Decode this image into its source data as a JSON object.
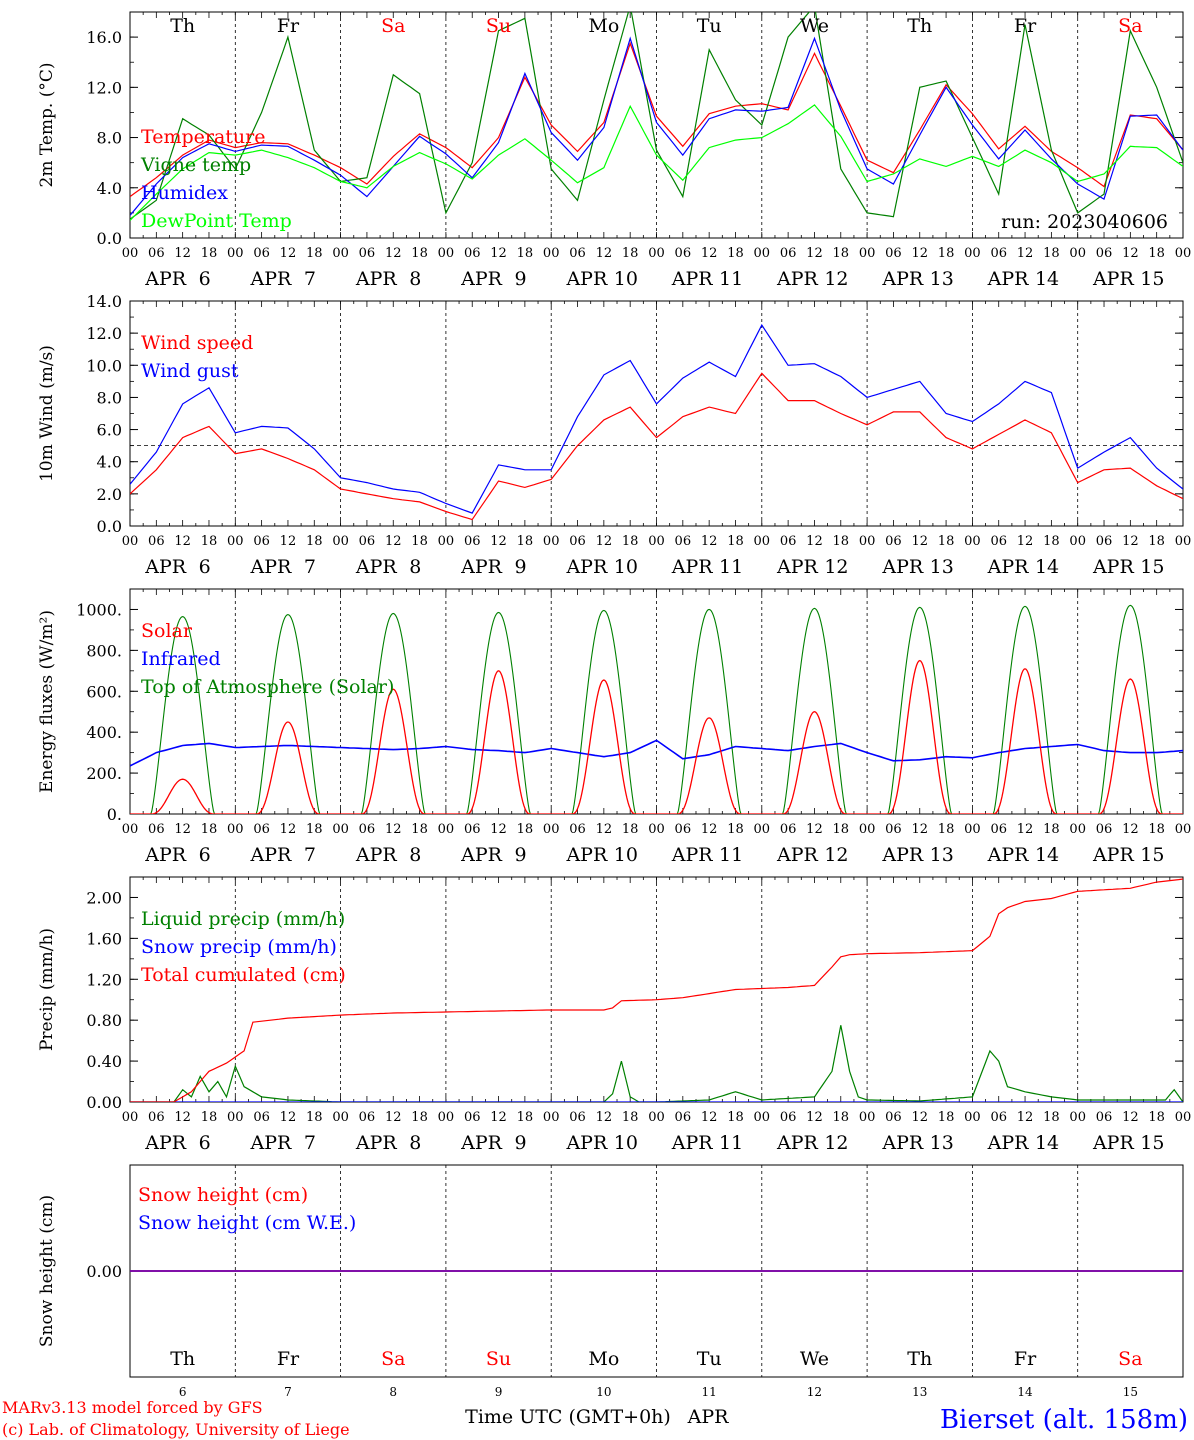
{
  "colors": {
    "red": "#ff0000",
    "green": "#008000",
    "lime": "#00ff00",
    "blue": "#0000ff",
    "purple": "#8000a0",
    "black": "#000000",
    "weekend": "#ff0000"
  },
  "days": [
    {
      "abbr": "Th",
      "date": "6",
      "weekend": false
    },
    {
      "abbr": "Fr",
      "date": "7",
      "weekend": false
    },
    {
      "abbr": "Sa",
      "date": "8",
      "weekend": true
    },
    {
      "abbr": "Su",
      "date": "9",
      "weekend": true
    },
    {
      "abbr": "Mo",
      "date": "10",
      "weekend": false
    },
    {
      "abbr": "Tu",
      "date": "11",
      "weekend": false
    },
    {
      "abbr": "We",
      "date": "12",
      "weekend": false
    },
    {
      "abbr": "Th",
      "date": "13",
      "weekend": false
    },
    {
      "abbr": "Fr",
      "date": "14",
      "weekend": false
    },
    {
      "abbr": "Sa",
      "date": "15",
      "weekend": true
    }
  ],
  "month": "APR",
  "hour_ticks": [
    "00",
    "06",
    "12",
    "18"
  ],
  "final_hour_tick": "00",
  "run_label": "run: 2023040606",
  "xlabel": "Time UTC (GMT+0h)",
  "xlabel_month": "APR",
  "footer": {
    "model": "MARv3.13 model forced by GFS",
    "copyright": "(c) Lab. of Climatology, University of Liege",
    "station": "Bierset (alt. 158m)"
  },
  "chart_data": [
    {
      "type": "line",
      "ylabel": "2m Temp. (°C)",
      "ylim": [
        0,
        18
      ],
      "yticks": [
        "0.0",
        "4.0",
        "8.0",
        "12.0",
        "16.0"
      ],
      "ytick_values": [
        0,
        4,
        8,
        12,
        16
      ],
      "legend_placement": "left",
      "x_unit": "hours since 2023-04-06 00:00 UTC",
      "series": [
        {
          "name": "Temperature",
          "color": "red",
          "x": [
            0,
            6,
            12,
            18,
            24,
            30,
            36,
            42,
            48,
            54,
            60,
            66,
            72,
            78,
            84,
            90,
            96,
            102,
            108,
            114,
            120,
            126,
            132,
            138,
            144,
            150,
            156,
            162,
            168,
            174,
            180,
            186,
            192,
            198,
            204,
            210,
            216,
            222,
            228,
            234,
            240
          ],
          "y": [
            3.3,
            4.8,
            6.6,
            7.8,
            7.2,
            7.6,
            7.5,
            6.6,
            5.6,
            4.3,
            6.5,
            8.3,
            7.2,
            5.6,
            8.0,
            12.8,
            9.0,
            6.9,
            9.2,
            15.5,
            9.7,
            7.3,
            9.9,
            10.5,
            10.7,
            10.2,
            14.7,
            10.5,
            6.2,
            5.2,
            8.6,
            12.2,
            9.9,
            7.1,
            8.9,
            6.9,
            5.6,
            4.1,
            9.8,
            9.5,
            7.0
          ]
        },
        {
          "name": "Vigne temp",
          "color": "green",
          "x": [
            0,
            6,
            12,
            18,
            24,
            30,
            36,
            42,
            48,
            54,
            60,
            66,
            72,
            78,
            84,
            90,
            96,
            102,
            108,
            114,
            120,
            126,
            132,
            138,
            144,
            150,
            156,
            162,
            168,
            174,
            180,
            186,
            192,
            198,
            204,
            210,
            216,
            222,
            228,
            234,
            240
          ],
          "y": [
            1.5,
            3.0,
            9.5,
            8.2,
            5.5,
            10.0,
            16.0,
            7.0,
            4.5,
            4.8,
            13.0,
            11.5,
            2.0,
            6.0,
            16.5,
            17.5,
            5.5,
            3.0,
            11.0,
            18.5,
            7.0,
            3.3,
            15.0,
            11.0,
            9.0,
            16.0,
            18.5,
            5.5,
            2.0,
            1.7,
            12.0,
            12.5,
            8.0,
            3.5,
            17.0,
            7.0,
            2.0,
            3.5,
            16.5,
            12.0,
            6.0
          ]
        },
        {
          "name": "Humidex",
          "color": "blue",
          "x": [
            0,
            6,
            12,
            18,
            24,
            30,
            36,
            42,
            48,
            54,
            60,
            66,
            72,
            78,
            84,
            90,
            96,
            102,
            108,
            114,
            120,
            126,
            132,
            138,
            144,
            150,
            156,
            162,
            168,
            174,
            180,
            186,
            192,
            198,
            204,
            210,
            216,
            222,
            228,
            234,
            240
          ],
          "y": [
            1.8,
            4.3,
            6.4,
            7.5,
            6.9,
            7.4,
            7.3,
            6.2,
            5.0,
            3.3,
            5.7,
            8.1,
            6.7,
            4.8,
            7.6,
            13.1,
            8.4,
            6.2,
            8.8,
            15.9,
            9.2,
            6.6,
            9.5,
            10.2,
            10.1,
            10.4,
            15.9,
            10.2,
            5.5,
            4.3,
            8.2,
            12.0,
            9.0,
            6.3,
            8.6,
            6.3,
            4.3,
            3.1,
            9.7,
            9.8,
            7.0
          ]
        },
        {
          "name": "DewPoint Temp",
          "color": "lime",
          "x": [
            0,
            6,
            12,
            18,
            24,
            30,
            36,
            42,
            48,
            54,
            60,
            66,
            72,
            78,
            84,
            90,
            96,
            102,
            108,
            114,
            120,
            126,
            132,
            138,
            144,
            150,
            156,
            162,
            168,
            174,
            180,
            186,
            192,
            198,
            204,
            210,
            216,
            222,
            228,
            234,
            240
          ],
          "y": [
            1.4,
            3.5,
            5.5,
            6.8,
            6.6,
            7.0,
            6.4,
            5.6,
            4.5,
            4.0,
            5.7,
            6.8,
            5.9,
            4.7,
            6.6,
            7.9,
            6.2,
            4.4,
            5.6,
            10.5,
            6.6,
            4.6,
            7.2,
            7.8,
            8.0,
            9.1,
            10.6,
            8.1,
            4.5,
            5.1,
            6.3,
            5.7,
            6.5,
            5.7,
            7.0,
            6.0,
            4.5,
            5.1,
            7.3,
            7.2,
            5.7
          ]
        }
      ]
    },
    {
      "type": "line",
      "ylabel": "10m Wind (m/s)",
      "ylim": [
        0,
        14
      ],
      "yticks": [
        "0.0",
        "2.0",
        "4.0",
        "6.0",
        "8.0",
        "10.0",
        "12.0",
        "14.0"
      ],
      "ytick_values": [
        0,
        2,
        4,
        6,
        8,
        10,
        12,
        14
      ],
      "reference_line": 5,
      "legend_placement": "top-left",
      "x_unit": "hours since 2023-04-06 00:00 UTC",
      "series": [
        {
          "name": "Wind speed",
          "color": "red",
          "x": [
            0,
            6,
            12,
            18,
            24,
            30,
            36,
            42,
            48,
            54,
            60,
            66,
            72,
            78,
            84,
            90,
            96,
            102,
            108,
            114,
            120,
            126,
            132,
            138,
            144,
            150,
            156,
            162,
            168,
            174,
            180,
            186,
            192,
            198,
            204,
            210,
            216,
            222,
            228,
            234,
            240
          ],
          "y": [
            2.0,
            3.5,
            5.5,
            6.2,
            4.5,
            4.8,
            4.2,
            3.5,
            2.3,
            2.0,
            1.7,
            1.5,
            0.9,
            0.4,
            2.8,
            2.4,
            2.9,
            5.0,
            6.6,
            7.4,
            5.5,
            6.8,
            7.4,
            7.0,
            9.5,
            7.8,
            7.8,
            7.0,
            6.3,
            7.1,
            7.1,
            5.5,
            4.8,
            5.7,
            6.6,
            5.8,
            2.7,
            3.5,
            3.6,
            2.5,
            1.7
          ]
        },
        {
          "name": "Wind gust",
          "color": "blue",
          "x": [
            0,
            6,
            12,
            18,
            24,
            30,
            36,
            42,
            48,
            54,
            60,
            66,
            72,
            78,
            84,
            90,
            96,
            102,
            108,
            114,
            120,
            126,
            132,
            138,
            144,
            150,
            156,
            162,
            168,
            174,
            180,
            186,
            192,
            198,
            204,
            210,
            216,
            222,
            228,
            234,
            240
          ],
          "y": [
            2.6,
            4.6,
            7.6,
            8.6,
            5.8,
            6.2,
            6.1,
            4.8,
            3.0,
            2.7,
            2.3,
            2.1,
            1.4,
            0.8,
            3.8,
            3.5,
            3.5,
            6.8,
            9.4,
            10.3,
            7.6,
            9.2,
            10.2,
            9.3,
            12.5,
            10.0,
            10.1,
            9.3,
            8.0,
            8.5,
            9.0,
            7.0,
            6.5,
            7.6,
            9.0,
            8.3,
            3.6,
            4.6,
            5.5,
            3.6,
            2.3
          ]
        }
      ]
    },
    {
      "type": "line",
      "ylabel": "Energy fluxes (W/m²)",
      "ylim": [
        0,
        1100
      ],
      "yticks": [
        "0.",
        "200.",
        "400.",
        "600.",
        "800.",
        "1000."
      ],
      "ytick_values": [
        0,
        200,
        400,
        600,
        800,
        1000
      ],
      "legend_placement": "top-left",
      "x_unit": "hours since 2023-04-06 00:00 UTC",
      "toa_daily_peaks": [
        965,
        975,
        980,
        985,
        995,
        1000,
        1005,
        1010,
        1015,
        1020
      ],
      "solar_daily_peaks": [
        170,
        450,
        610,
        700,
        655,
        470,
        500,
        750,
        710,
        660
      ],
      "infrared": {
        "x": [
          0,
          6,
          12,
          18,
          24,
          30,
          36,
          42,
          48,
          54,
          60,
          66,
          72,
          78,
          84,
          90,
          96,
          102,
          108,
          114,
          120,
          126,
          132,
          138,
          144,
          150,
          156,
          162,
          168,
          174,
          180,
          186,
          192,
          198,
          204,
          210,
          216,
          222,
          228,
          234,
          240
        ],
        "y": [
          235,
          300,
          335,
          345,
          325,
          330,
          335,
          330,
          325,
          320,
          315,
          320,
          330,
          315,
          310,
          300,
          320,
          300,
          280,
          300,
          360,
          270,
          290,
          330,
          320,
          310,
          330,
          345,
          300,
          260,
          265,
          280,
          275,
          300,
          320,
          330,
          340,
          310,
          300,
          300,
          310
        ]
      },
      "series": [
        {
          "name": "Solar",
          "color": "red"
        },
        {
          "name": "Infrared",
          "color": "blue"
        },
        {
          "name": "Top of Atmosphere (Solar)",
          "color": "green"
        }
      ]
    },
    {
      "type": "line",
      "ylabel": "Precip (mm/h)",
      "ylim": [
        0,
        2.2
      ],
      "yticks": [
        "0.00",
        "0.40",
        "0.80",
        "1.20",
        "1.60",
        "2.00"
      ],
      "ytick_values": [
        0,
        0.4,
        0.8,
        1.2,
        1.6,
        2.0
      ],
      "legend_placement": "top-left",
      "x_unit": "hours since 2023-04-06 00:00 UTC",
      "series": [
        {
          "name": "Liquid precip (mm/h)",
          "color": "green",
          "x": [
            0,
            10,
            12,
            14,
            16,
            18,
            20,
            22,
            24,
            26,
            28,
            30,
            36,
            48,
            72,
            96,
            108,
            110,
            112,
            114,
            116,
            120,
            132,
            138,
            144,
            156,
            160,
            162,
            164,
            166,
            168,
            180,
            192,
            196,
            198,
            200,
            204,
            210,
            216,
            228,
            236,
            238,
            240
          ],
          "y": [
            0,
            0,
            0.12,
            0.05,
            0.25,
            0.1,
            0.2,
            0.05,
            0.35,
            0.15,
            0.1,
            0.05,
            0.02,
            0,
            0,
            0,
            0,
            0.08,
            0.4,
            0.05,
            0,
            0,
            0.02,
            0.1,
            0.02,
            0.05,
            0.3,
            0.75,
            0.3,
            0.05,
            0.02,
            0.01,
            0.05,
            0.5,
            0.4,
            0.15,
            0.1,
            0.05,
            0.02,
            0.02,
            0.02,
            0.12,
            0
          ]
        },
        {
          "name": "Snow precip (mm/h)",
          "color": "blue",
          "x": [
            0,
            240
          ],
          "y": [
            0,
            0
          ]
        },
        {
          "name": "Total cumulated (cm)",
          "color": "red",
          "x": [
            0,
            10,
            14,
            18,
            22,
            26,
            28,
            30,
            36,
            48,
            60,
            72,
            84,
            96,
            108,
            110,
            112,
            120,
            126,
            132,
            138,
            144,
            150,
            156,
            160,
            162,
            164,
            168,
            180,
            192,
            196,
            198,
            200,
            204,
            210,
            216,
            228,
            234,
            240
          ],
          "y": [
            0,
            0,
            0.1,
            0.3,
            0.38,
            0.5,
            0.78,
            0.79,
            0.82,
            0.85,
            0.87,
            0.88,
            0.89,
            0.9,
            0.9,
            0.92,
            0.99,
            1.0,
            1.02,
            1.06,
            1.1,
            1.11,
            1.12,
            1.14,
            1.32,
            1.42,
            1.44,
            1.45,
            1.46,
            1.48,
            1.62,
            1.84,
            1.9,
            1.96,
            1.99,
            2.06,
            2.09,
            2.15,
            2.18
          ]
        }
      ]
    },
    {
      "type": "line",
      "ylabel": "Snow height (cm)",
      "ylim": [
        -1,
        1
      ],
      "yticks": [
        "0.00"
      ],
      "ytick_values": [
        0
      ],
      "legend_placement": "top-left",
      "x_unit": "hours since 2023-04-06 00:00 UTC",
      "series": [
        {
          "name": "Snow height (cm)",
          "color": "red",
          "x": [
            0,
            240
          ],
          "y": [
            0,
            0
          ]
        },
        {
          "name": "Snow height (cm W.E.)",
          "color": "blue",
          "x": [
            0,
            240
          ],
          "y": [
            0,
            0
          ]
        }
      ]
    }
  ]
}
